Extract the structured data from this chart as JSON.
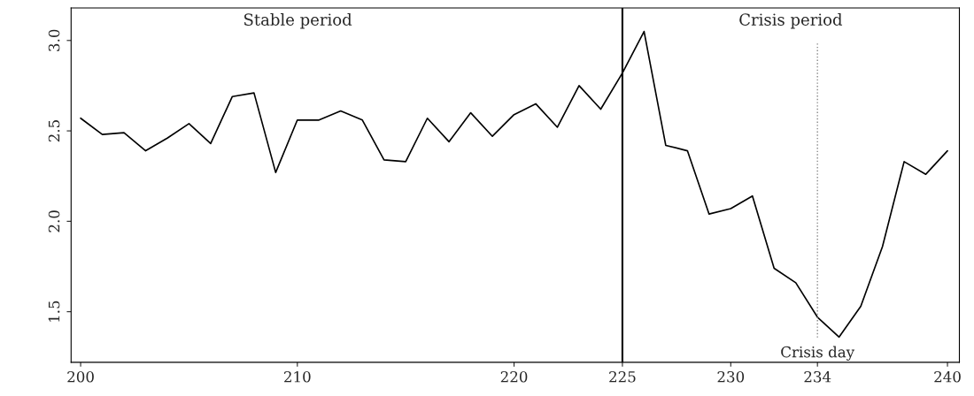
{
  "chart_data": {
    "type": "line",
    "x": [
      200,
      201,
      202,
      203,
      204,
      205,
      206,
      207,
      208,
      209,
      210,
      211,
      212,
      213,
      214,
      215,
      216,
      217,
      218,
      219,
      220,
      221,
      222,
      223,
      224,
      225,
      226,
      227,
      228,
      229,
      230,
      231,
      232,
      233,
      234,
      235,
      236,
      237,
      238,
      239,
      240
    ],
    "series": [
      {
        "color": "#000000",
        "values": [
          2.57,
          2.48,
          2.49,
          2.39,
          2.46,
          2.54,
          2.43,
          2.69,
          2.71,
          2.27,
          2.56,
          2.56,
          2.61,
          2.56,
          2.34,
          2.33,
          2.57,
          2.44,
          2.6,
          2.47,
          2.59,
          2.65,
          2.52,
          2.75,
          2.62,
          2.82,
          3.05,
          2.42,
          2.39,
          2.04,
          2.07,
          2.14,
          1.74,
          1.66,
          1.47,
          1.36,
          1.53,
          1.86,
          2.33,
          2.26,
          2.39
        ]
      }
    ],
    "xlim": [
      199.56,
      240.55
    ],
    "ylim": [
      1.22,
      3.18
    ],
    "xticks": [
      200,
      210,
      220,
      225,
      230,
      234,
      240
    ],
    "yticks": [
      {
        "value": 1.5,
        "label": "1.5"
      },
      {
        "value": 2.0,
        "label": "2.0"
      },
      {
        "value": 2.5,
        "label": "2.5"
      },
      {
        "value": 3.0,
        "label": "3.0"
      }
    ],
    "ref_lines": [
      {
        "axis": "x",
        "value": 225,
        "color": "#000000",
        "line_style": "solid"
      },
      {
        "axis": "x",
        "value": 234,
        "label": "Crisis day",
        "color": "#888888",
        "line_style": "dotted"
      }
    ],
    "annotations": [
      "Stable period",
      "Crisis period"
    ],
    "grid": false,
    "legend": false,
    "marker": "none",
    "line_style": "solid"
  }
}
